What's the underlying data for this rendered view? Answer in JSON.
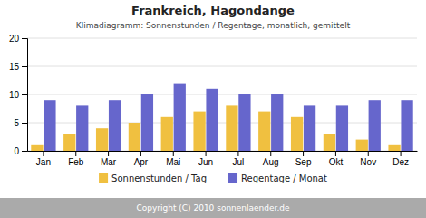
{
  "chart_data": {
    "type": "bar",
    "title": "Frankreich, Hagondange",
    "subtitle": "Klimadiagramm: Sonnenstunden / Regentage, monatlich, gemittelt",
    "footer": "Copyright (C) 2010 sonnenlaender.de",
    "categories": [
      "Jan",
      "Feb",
      "Mar",
      "Apr",
      "Mai",
      "Jun",
      "Jul",
      "Aug",
      "Sep",
      "Okt",
      "Nov",
      "Dez"
    ],
    "series": [
      {
        "name": "Sonnenstunden / Tag",
        "color": "#F0C040",
        "values": [
          1,
          3,
          4,
          5,
          6,
          7,
          8,
          7,
          6,
          3,
          2,
          1
        ]
      },
      {
        "name": "Regentage / Monat",
        "color": "#6666CC",
        "values": [
          9,
          8,
          9,
          10,
          12,
          11,
          10,
          10,
          8,
          8,
          9,
          9
        ]
      }
    ],
    "ylim": [
      0,
      20
    ],
    "yticks": [
      0,
      5,
      10,
      15,
      20
    ],
    "grid": true,
    "legend": "bottom"
  }
}
